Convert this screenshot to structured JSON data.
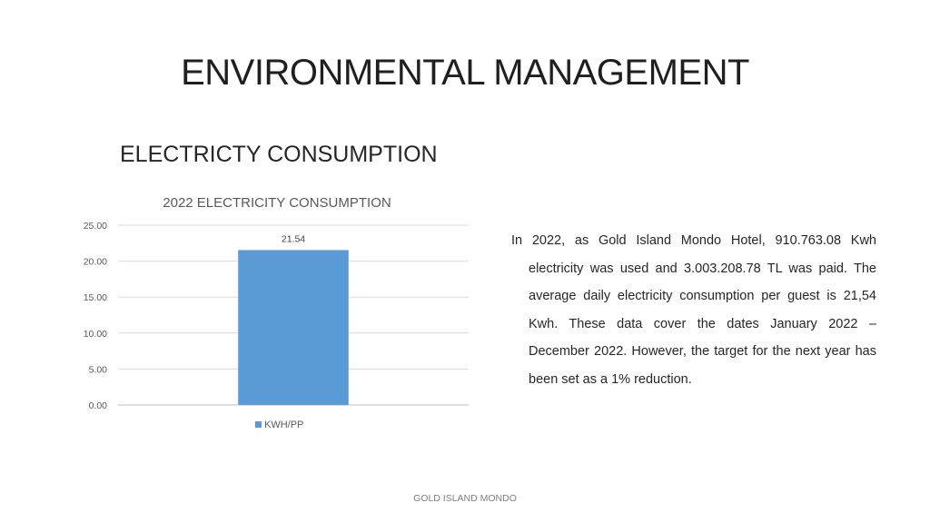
{
  "slide": {
    "title": "ENVIRONMENTAL MANAGEMENT",
    "section_title": "ELECTRICTY CONSUMPTION",
    "body_text": "In 2022, as Gold Island Mondo Hotel, 910.763.08 Kwh electricity was used and 3.003.208.78 TL was paid. The average daily electricity consumption per guest is 21,54 Kwh. These data cover the dates January 2022 – December 2022. However, the target for the next year has been set as a 1% reduction.",
    "footer": "GOLD ISLAND MONDO"
  },
  "chart_data": {
    "type": "bar",
    "title": "2022 ELECTRICITY CONSUMPTION",
    "categories": [
      ""
    ],
    "series": [
      {
        "name": "KWH/PP",
        "values": [
          21.54
        ],
        "color": "#5b9bd5",
        "data_labels": [
          "21.54"
        ]
      }
    ],
    "ylim": [
      0,
      25
    ],
    "yticks": [
      "0.00",
      "5.00",
      "10.00",
      "15.00",
      "20.00",
      "25.00"
    ],
    "grid": true,
    "legend": "bottom"
  }
}
